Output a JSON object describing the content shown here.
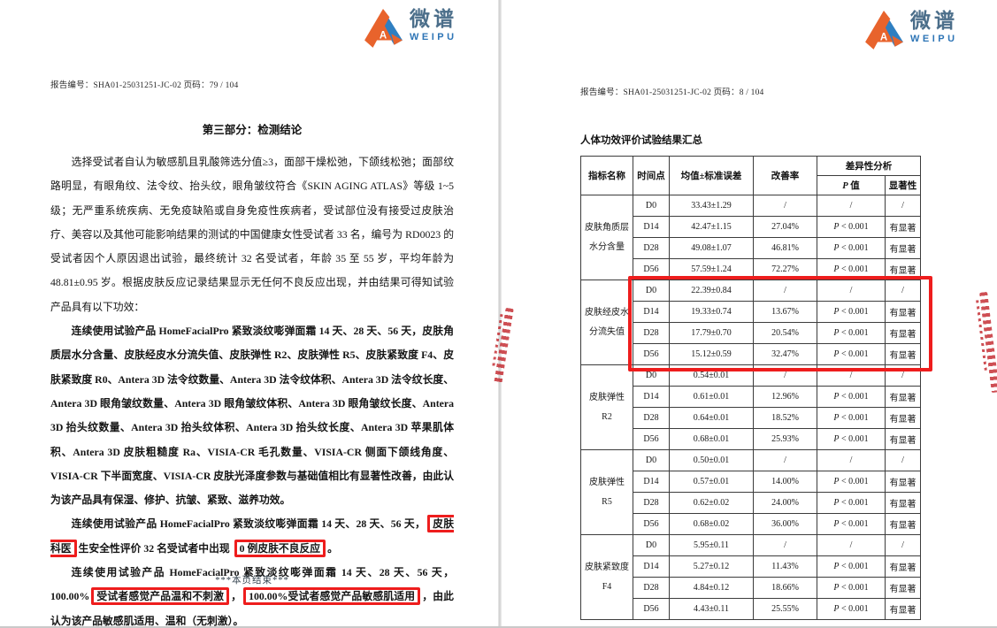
{
  "colors": {
    "highlight_red": "#ee1d1d",
    "logo_orange": "#e8632c",
    "logo_blue": "#2f7fc1",
    "logo_text_blue": "#2e75b6",
    "logo_zh_color": "#4b6e8a"
  },
  "logo": {
    "zh": "微谱",
    "en": "WEIPU"
  },
  "watermark_text": "/*580",
  "left_page": {
    "report_line": "报告编号：SHA01-25031251-JC-02 页码：79 / 104",
    "title": "第三部分：检测结论",
    "paragraphs": [
      {
        "bold": false,
        "segments": [
          {
            "t": "选择受试者自认为敏感肌且乳酸筛选分值≥3，面部干燥松弛，下颌线松弛；面部纹路明显，有眼角纹、法令纹、抬头纹，眼角皱纹符合《SKIN AGING ATLAS》等级 1~5 级；无严重系统疾病、无免疫缺陷或自身免疫性疾病者，受试部位没有接受过皮肤治疗、美容以及其他可能影响结果的测试的中国健康女性受试者 33 名，编号为 RD0023 的受试者因个人原因退出试验，最终统计 32 名受试者，年龄 35 至 55 岁，平均年龄为 48.81±0.95 岁。根据皮肤反应记录结果显示无任何不良反应出现，并由结果可得知试验产品具有以下功效："
          }
        ]
      },
      {
        "bold": true,
        "segments": [
          {
            "t": "连续使用试验产品 HomeFacialPro 紧致淡纹嘭弹面霜 14 天、28 天、56 天，皮肤角质层水分含量、皮肤经皮水分流失值、皮肤弹性 R2、皮肤弹性 R5、皮肤紧致度 F4、皮肤紧致度 R0、Antera 3D 法令纹数量、Antera 3D 法令纹体积、Antera 3D 法令纹长度、Antera 3D 眼角皱纹数量、Antera 3D 眼角皱纹体积、Antera 3D 眼角皱纹长度、Antera 3D 抬头纹数量、Antera 3D 抬头纹体积、Antera 3D 抬头纹长度、Antera 3D 苹果肌体积、Antera 3D 皮肤粗糙度 Ra、VISIA-CR 毛孔数量、VISIA-CR 侧面下颌线角度、VISIA-CR 下半面宽度、VISIA-CR 皮肤光泽度参数与基础值相比有显著性改善，由此认为该产品具有保湿、修护、抗皱、紧致、滋养功效。"
          }
        ]
      },
      {
        "bold": true,
        "segments": [
          {
            "t": "连续使用试验产品 HomeFacialPro 紧致淡纹嘭弹面霜 14 天、28 天、56 天，"
          },
          {
            "t": "皮肤科医",
            "box": true
          },
          {
            "t": "生安全性评价 32 名受试者中出现 "
          },
          {
            "t": "0 例皮肤不良反应",
            "box": true
          },
          {
            "t": "。"
          }
        ]
      },
      {
        "bold": true,
        "segments": [
          {
            "t": "连续使用试验产品 HomeFacialPro 紧致淡纹嘭弹面霜 14 天、28 天、56 天，100.00%"
          },
          {
            "t": "受试者感觉产品温和不刺激",
            "box": true
          },
          {
            "t": "，"
          },
          {
            "t": "100.00%受试者感觉产品敏感肌适用",
            "box": true
          },
          {
            "t": "，由此认为该产品敏感肌适用、温和（无刺激）。"
          }
        ]
      }
    ],
    "footer": "***本页结束***"
  },
  "right_page": {
    "report_line": "报告编号：SHA01-25031251-JC-02 页码：8 / 104",
    "section_title": "人体功效评价试验结果汇总",
    "table": {
      "headers": {
        "indicator": "指标名称",
        "time_point": "时间点",
        "mean_se": "均值±标准误差",
        "improvement": "改善率",
        "diff_analysis": "差异性分析",
        "p_italic": "P",
        "p_label": " 值",
        "significance": "显著性"
      },
      "groups": [
        {
          "name_lines": [
            "皮肤角质层",
            "水分含量"
          ],
          "highlight": false,
          "rows": [
            [
              "D0",
              "33.43±1.29",
              "/",
              "/",
              "/"
            ],
            [
              "D14",
              "42.47±1.15",
              "27.04%",
              "P < 0.001",
              "有显著"
            ],
            [
              "D28",
              "49.08±1.07",
              "46.81%",
              "P < 0.001",
              "有显著"
            ],
            [
              "D56",
              "57.59±1.24",
              "72.27%",
              "P < 0.001",
              "有显著"
            ]
          ]
        },
        {
          "name_lines": [
            "皮肤经皮水",
            "分流失值"
          ],
          "highlight": true,
          "rows": [
            [
              "D0",
              "22.39±0.84",
              "/",
              "/",
              "/"
            ],
            [
              "D14",
              "19.33±0.74",
              "13.67%",
              "P < 0.001",
              "有显著"
            ],
            [
              "D28",
              "17.79±0.70",
              "20.54%",
              "P < 0.001",
              "有显著"
            ],
            [
              "D56",
              "15.12±0.59",
              "32.47%",
              "P < 0.001",
              "有显著"
            ]
          ]
        },
        {
          "name_lines": [
            "皮肤弹性",
            "R2"
          ],
          "highlight": false,
          "rows": [
            [
              "D0",
              "0.54±0.01",
              "/",
              "/",
              "/"
            ],
            [
              "D14",
              "0.61±0.01",
              "12.96%",
              "P < 0.001",
              "有显著"
            ],
            [
              "D28",
              "0.64±0.01",
              "18.52%",
              "P < 0.001",
              "有显著"
            ],
            [
              "D56",
              "0.68±0.01",
              "25.93%",
              "P < 0.001",
              "有显著"
            ]
          ]
        },
        {
          "name_lines": [
            "皮肤弹性",
            "R5"
          ],
          "highlight": false,
          "rows": [
            [
              "D0",
              "0.50±0.01",
              "/",
              "/",
              "/"
            ],
            [
              "D14",
              "0.57±0.01",
              "14.00%",
              "P < 0.001",
              "有显著"
            ],
            [
              "D28",
              "0.62±0.02",
              "24.00%",
              "P < 0.001",
              "有显著"
            ],
            [
              "D56",
              "0.68±0.02",
              "36.00%",
              "P < 0.001",
              "有显著"
            ]
          ]
        },
        {
          "name_lines": [
            "皮肤紧致度",
            "F4"
          ],
          "highlight": false,
          "rows": [
            [
              "D0",
              "5.95±0.11",
              "/",
              "/",
              "/"
            ],
            [
              "D14",
              "5.27±0.12",
              "11.43%",
              "P < 0.001",
              "有显著"
            ],
            [
              "D28",
              "4.84±0.12",
              "18.66%",
              "P < 0.001",
              "有显著"
            ],
            [
              "D56",
              "4.43±0.11",
              "25.55%",
              "P < 0.001",
              "有显著"
            ]
          ]
        }
      ]
    }
  }
}
